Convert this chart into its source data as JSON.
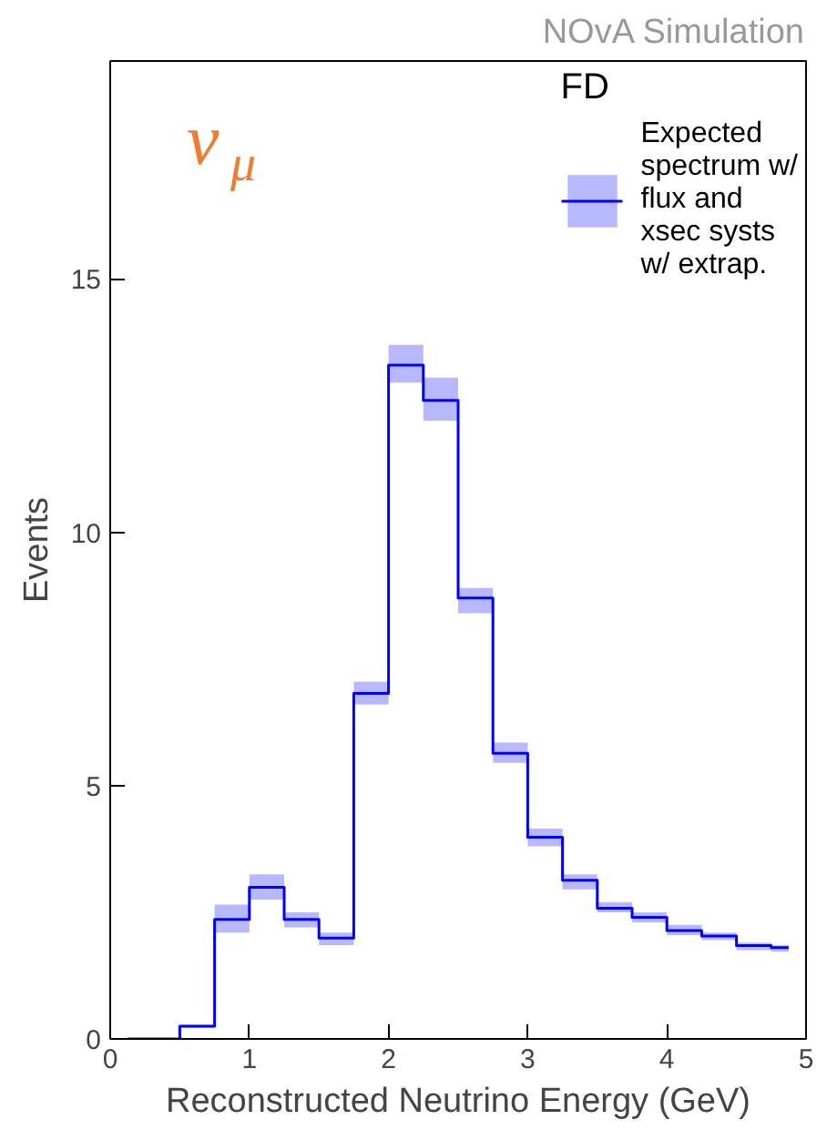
{
  "chart_data": {
    "type": "step",
    "xlabel": "Reconstructed Neutrino Energy (GeV)",
    "ylabel": "Events",
    "legend_title": "FD",
    "annotations": [
      "ν$_{μ}$",
      "NOvA Simulation"
    ],
    "x": [
      0.125,
      0.375,
      0.625,
      0.875,
      1.125,
      1.375,
      1.625,
      1.875,
      2.125,
      2.375,
      2.625,
      2.875,
      3.125,
      3.375,
      3.625,
      3.875,
      4.125,
      4.375,
      4.625,
      4.875
    ],
    "series": [
      {
        "name": "Expected spectrum w/ flux and xsec systs w/ extrap.",
        "color": "#0000ff",
        "values": [
          0,
          0,
          0.25,
          2.36,
          2.99,
          2.36,
          1.99,
          6.82,
          13.3,
          12.6,
          8.7,
          5.64,
          3.98,
          3.13,
          2.58,
          2.4,
          2.14,
          2.03,
          1.84,
          1.8
        ],
        "lower": [
          0,
          0,
          0.22,
          2.1,
          2.75,
          2.2,
          1.85,
          6.6,
          12.95,
          12.2,
          8.4,
          5.45,
          3.8,
          2.95,
          2.5,
          2.3,
          2.05,
          1.95,
          1.75,
          1.72
        ],
        "upper": [
          0,
          0,
          0.28,
          2.65,
          3.25,
          2.5,
          2.1,
          7.05,
          13.7,
          13.05,
          8.9,
          5.85,
          4.15,
          3.25,
          2.7,
          2.5,
          2.25,
          2.1,
          1.9,
          1.85
        ]
      }
    ],
    "xlim": [
      0,
      5
    ],
    "ylim": [
      0,
      19.3
    ],
    "xticks": [
      0,
      1,
      2,
      3,
      4,
      5
    ],
    "yticks": [
      0,
      5,
      10,
      15
    ],
    "grid": false,
    "legend": "top right"
  }
}
